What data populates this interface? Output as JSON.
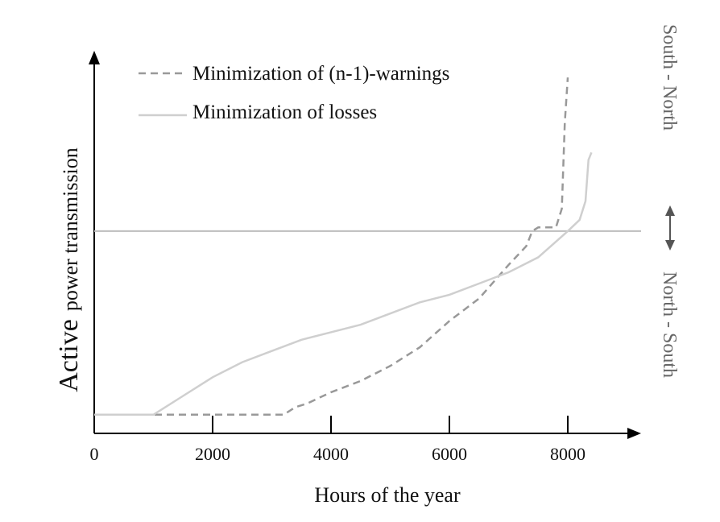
{
  "chart_data": {
    "type": "line",
    "xlabel": "Hours of the year",
    "ylabel_big": "Active",
    "ylabel_rest": "power transmission",
    "xlim": [
      0,
      9300
    ],
    "ylim": [
      0,
      100
    ],
    "xticks": [
      0,
      2000,
      4000,
      6000,
      8000
    ],
    "xtick_labels": [
      "0",
      "2000",
      "4000",
      "6000",
      "8000"
    ],
    "reference_line": {
      "y": 54,
      "color": "#bdbdbd"
    },
    "direction_labels": {
      "upper": "South - North",
      "lower": "North - South"
    },
    "legend": {
      "placement": "top-left"
    },
    "series": [
      {
        "name": "Minimization of (n-1)-warnings",
        "style": "dashed",
        "color": "#999999",
        "x": [
          0,
          1000,
          2000,
          3000,
          3200,
          3400,
          3600,
          4000,
          4500,
          5000,
          5500,
          6000,
          6500,
          7000,
          7300,
          7400,
          7500,
          7800,
          7900,
          7950,
          8000
        ],
        "y": [
          5,
          5,
          5,
          5,
          5,
          7,
          8,
          11,
          14,
          18,
          23,
          30,
          36,
          45,
          50,
          54,
          55,
          55,
          60,
          83,
          95
        ]
      },
      {
        "name": "Minimization of losses",
        "style": "solid",
        "color": "#cfcfcf",
        "x": [
          0,
          1000,
          1500,
          2000,
          2500,
          3000,
          3500,
          4000,
          4500,
          5000,
          5500,
          6000,
          6500,
          7000,
          7500,
          8000,
          8200,
          8300,
          8350,
          8400
        ],
        "y": [
          5,
          5,
          10,
          15,
          19,
          22,
          25,
          27,
          29,
          32,
          35,
          37,
          40,
          43,
          47,
          54,
          57,
          62,
          73,
          75
        ]
      }
    ]
  },
  "colors": {
    "axis": "#000000",
    "arrow": "#555555"
  }
}
